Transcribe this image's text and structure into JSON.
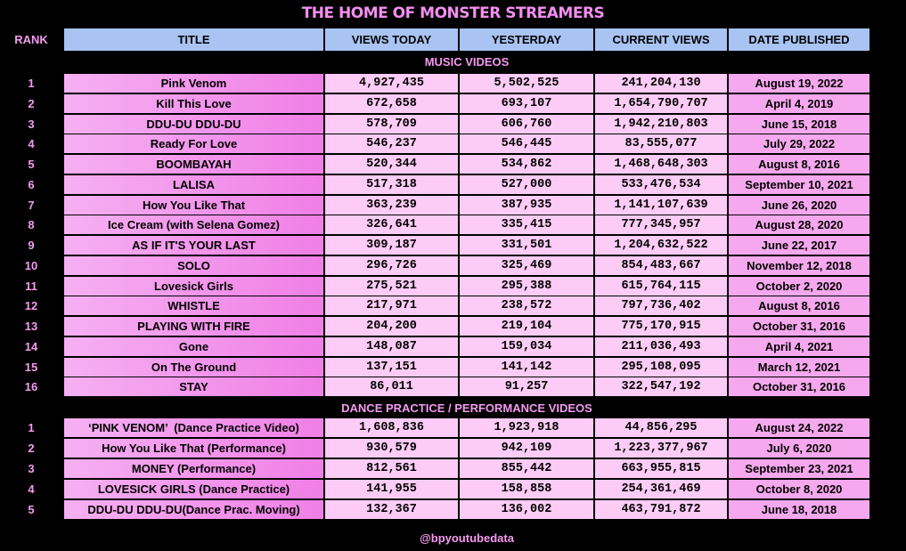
{
  "header": {
    "title": "THE HOME OF MONSTER STREAMERS"
  },
  "table": {
    "columns": [
      "RANK",
      "TITLE",
      "VIEWS TODAY",
      "YESTERDAY",
      "CURRENT VIEWS",
      "DATE PUBLISHED"
    ],
    "sections": [
      {
        "title": "MUSIC VIDEOS",
        "rows": [
          [
            "1",
            "Pink Venom",
            "4,927,435",
            "5,502,525",
            "241,204,130",
            "August 19, 2022"
          ],
          [
            "2",
            "Kill This Love",
            "672,658",
            "693,107",
            "1,654,790,707",
            "April 4, 2019"
          ],
          [
            "3",
            "DDU-DU DDU-DU",
            "578,709",
            "606,760",
            "1,942,210,803",
            "June 15, 2018"
          ],
          [
            "4",
            "Ready For Love",
            "546,237",
            "546,445",
            "83,555,077",
            "July 29, 2022"
          ],
          [
            "5",
            "BOOMBAYAH",
            "520,344",
            "534,862",
            "1,468,648,303",
            "August 8, 2016"
          ],
          [
            "6",
            "LALISA",
            "517,318",
            "527,000",
            "533,476,534",
            "September 10, 2021"
          ],
          [
            "7",
            "How You Like That",
            "363,239",
            "387,935",
            "1,141,107,639",
            "June 26, 2020"
          ],
          [
            "8",
            "Ice Cream (with Selena Gomez)",
            "326,641",
            "335,415",
            "777,345,957",
            "August 28, 2020"
          ],
          [
            "9",
            "AS IF IT'S YOUR LAST",
            "309,187",
            "331,501",
            "1,204,632,522",
            "June 22, 2017"
          ],
          [
            "10",
            "SOLO",
            "296,726",
            "325,469",
            "854,483,667",
            "November 12, 2018"
          ],
          [
            "11",
            "Lovesick Girls",
            "275,521",
            "295,388",
            "615,764,115",
            "October 2, 2020"
          ],
          [
            "12",
            "WHISTLE",
            "217,971",
            "238,572",
            "797,736,402",
            "August 8, 2016"
          ],
          [
            "13",
            "PLAYING WITH FIRE",
            "204,200",
            "219,104",
            "775,170,915",
            "October 31, 2016"
          ],
          [
            "14",
            "Gone",
            "148,087",
            "159,034",
            "211,036,493",
            "April 4, 2021"
          ],
          [
            "15",
            "On The Ground",
            "137,151",
            "141,142",
            "295,108,095",
            "March 12, 2021"
          ],
          [
            "16",
            "STAY",
            "86,011",
            "91,257",
            "322,547,192",
            "October 31, 2016"
          ]
        ]
      },
      {
        "title": "DANCE PRACTICE / PERFORMANCE VIDEOS",
        "rows": [
          [
            "1",
            "‘PINK VENOM’  (Dance Practice Video)",
            "1,608,836",
            "1,923,918",
            "44,856,295",
            "August 24, 2022"
          ],
          [
            "2",
            "How You Like That (Performance)",
            "930,579",
            "942,109",
            "1,223,377,967",
            "July 6, 2020"
          ],
          [
            "3",
            "MONEY (Performance)",
            "812,561",
            "855,442",
            "663,955,815",
            "September 23, 2021"
          ],
          [
            "4",
            "LOVESICK GIRLS (Dance Practice)",
            "141,955",
            "158,858",
            "254,361,469",
            "October 8, 2020"
          ],
          [
            "5",
            "DDU-DU DDU-DU(Dance Prac. Moving)",
            "132,367",
            "136,002",
            "463,791,872",
            "June 18, 2018"
          ]
        ]
      }
    ]
  },
  "footer": {
    "handle": "@bpyoutubedata"
  }
}
